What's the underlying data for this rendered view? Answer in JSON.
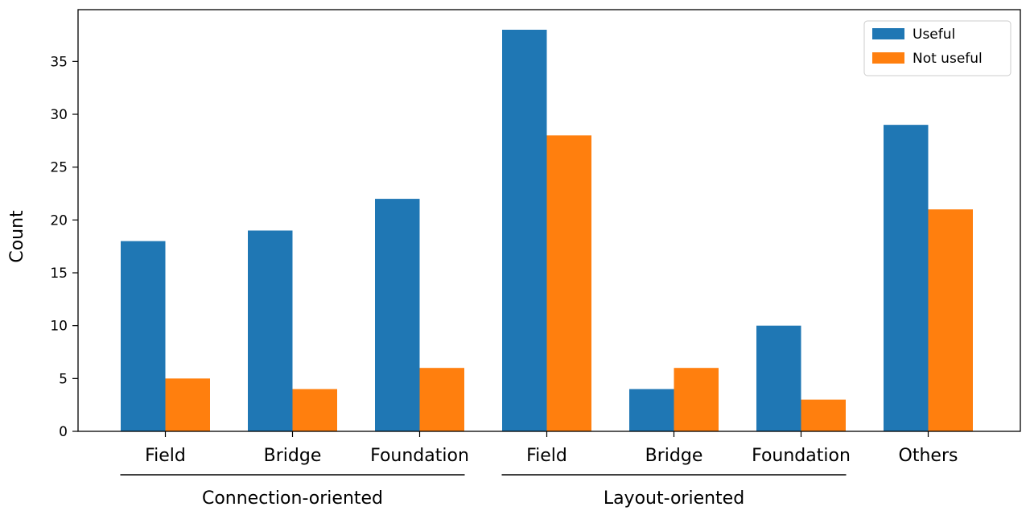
{
  "chart_data": {
    "type": "bar",
    "categories": [
      "Field",
      "Bridge",
      "Foundation",
      "Field",
      "Bridge",
      "Foundation",
      "Others"
    ],
    "groups": [
      {
        "label": "Connection-oriented",
        "categories": [
          0,
          1,
          2
        ]
      },
      {
        "label": "Layout-oriented",
        "categories": [
          3,
          4,
          5
        ]
      }
    ],
    "series": [
      {
        "name": "Useful",
        "values": [
          18,
          19,
          22,
          38,
          4,
          10,
          29
        ],
        "color": "#1f77b4"
      },
      {
        "name": "Not useful",
        "values": [
          5,
          4,
          6,
          28,
          6,
          3,
          21
        ],
        "color": "#ff7f0e"
      }
    ],
    "title": "",
    "xlabel": "",
    "ylabel": "Count",
    "ylim": [
      0,
      40
    ],
    "yticks": [
      0,
      5,
      10,
      15,
      20,
      25,
      30,
      35
    ],
    "grid": false,
    "legend_position": "top-right"
  }
}
